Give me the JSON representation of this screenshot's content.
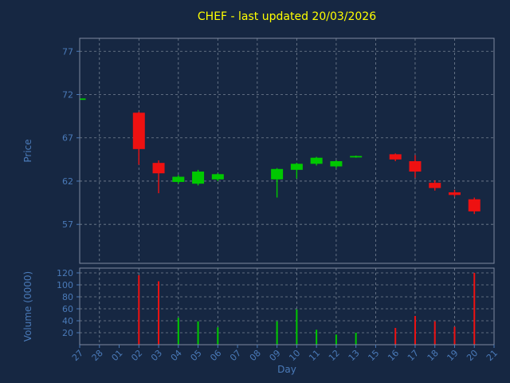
{
  "title": "CHEF - last updated 20/03/2026",
  "colors": {
    "background": "#162742",
    "up": "#00c800",
    "down": "#ee1111",
    "axis_text": "#4a7ab8",
    "title_text": "#ffff00",
    "grid": "#c4cdd6",
    "spine": "#7d8aa0"
  },
  "chart_data": {
    "type": "candlestick",
    "title": "CHEF - last updated 20/03/2026",
    "xlabel": "Day",
    "price_ylabel": "Price",
    "volume_ylabel": "Volume (0000)",
    "legend": "none",
    "grid": "dashed",
    "x_ticklabels": [
      "27",
      "28",
      "01",
      "02",
      "03",
      "04",
      "05",
      "06",
      "07",
      "08",
      "09",
      "10",
      "11",
      "12",
      "13",
      "15",
      "16",
      "17",
      "18",
      "19",
      "20",
      "21"
    ],
    "price_ticks": [
      57,
      62,
      67,
      72,
      77
    ],
    "volume_ticks": [
      20,
      40,
      60,
      80,
      100,
      120
    ],
    "price_ylim": [
      52.5,
      78.5
    ],
    "volume_ylim": [
      0,
      128
    ],
    "candles": [
      {
        "day": "27",
        "x": 0,
        "open": 71.5,
        "high": 71.6,
        "low": 71.4,
        "close": 71.55,
        "volume": 0
      },
      {
        "day": "02",
        "x": 3,
        "open": 69.9,
        "high": 70.0,
        "low": 63.9,
        "close": 65.7,
        "volume": 116
      },
      {
        "day": "03",
        "x": 4,
        "open": 64.1,
        "high": 64.4,
        "low": 60.6,
        "close": 62.9,
        "volume": 106
      },
      {
        "day": "04",
        "x": 5,
        "open": 61.9,
        "high": 62.7,
        "low": 61.7,
        "close": 62.5,
        "volume": 45
      },
      {
        "day": "05",
        "x": 6,
        "open": 61.7,
        "high": 63.3,
        "low": 61.5,
        "close": 63.1,
        "volume": 39
      },
      {
        "day": "06",
        "x": 7,
        "open": 62.2,
        "high": 62.9,
        "low": 62.0,
        "close": 62.8,
        "volume": 29
      },
      {
        "day": "09",
        "x": 10,
        "open": 62.2,
        "high": 63.5,
        "low": 60.1,
        "close": 63.4,
        "volume": 39
      },
      {
        "day": "10",
        "x": 11,
        "open": 63.3,
        "high": 64.1,
        "low": 62.3,
        "close": 64.0,
        "volume": 59
      },
      {
        "day": "11",
        "x": 12,
        "open": 64.0,
        "high": 64.8,
        "low": 63.8,
        "close": 64.7,
        "volume": 25
      },
      {
        "day": "12",
        "x": 13,
        "open": 63.7,
        "high": 64.4,
        "low": 63.5,
        "close": 64.3,
        "volume": 17
      },
      {
        "day": "13",
        "x": 14,
        "open": 64.8,
        "high": 64.95,
        "low": 64.7,
        "close": 64.9,
        "volume": 20
      },
      {
        "day": "16",
        "x": 16,
        "open": 65.1,
        "high": 65.2,
        "low": 64.3,
        "close": 64.5,
        "volume": 28
      },
      {
        "day": "17",
        "x": 17,
        "open": 64.3,
        "high": 65.0,
        "low": 62.4,
        "close": 63.1,
        "volume": 48
      },
      {
        "day": "18",
        "x": 18,
        "open": 61.8,
        "high": 62.1,
        "low": 60.9,
        "close": 61.2,
        "volume": 39
      },
      {
        "day": "19",
        "x": 19,
        "open": 60.7,
        "high": 61.0,
        "low": 60.2,
        "close": 60.4,
        "volume": 30
      },
      {
        "day": "20",
        "x": 20,
        "open": 59.9,
        "high": 60.1,
        "low": 58.2,
        "close": 58.5,
        "volume": 120
      }
    ]
  }
}
